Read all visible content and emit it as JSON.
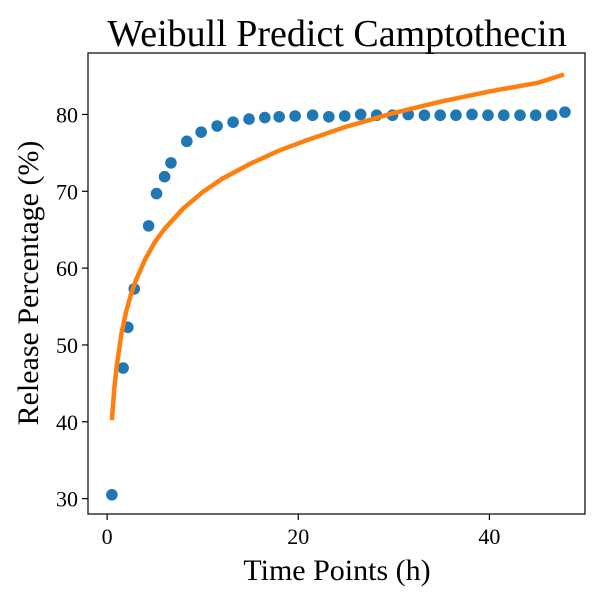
{
  "chart_data": {
    "type": "scatter",
    "title": "Weibull Predict Camptothecin",
    "xlabel": "Time Points (h)",
    "ylabel": "Release Percentage (%)",
    "xlim": [
      -2.0,
      50.0
    ],
    "ylim": [
      28.0,
      88.0
    ],
    "xticks": [
      0,
      20,
      40
    ],
    "yticks": [
      30,
      40,
      50,
      60,
      70,
      80
    ],
    "grid": false,
    "legend": "none",
    "colors": {
      "observed": "#1f77b4",
      "fit": "#ff7f0e"
    },
    "series": [
      {
        "kind": "scatter",
        "x": [
          0.5,
          1.67,
          2.17,
          2.84,
          4.34,
          5.17,
          6.01,
          6.68,
          8.34,
          9.84,
          11.51,
          13.18,
          14.85,
          16.5,
          18.0,
          19.67,
          21.5,
          23.2,
          24.86,
          26.53,
          28.2,
          29.86,
          31.5,
          33.2,
          34.85,
          36.5,
          38.18,
          39.85,
          41.5,
          43.2,
          44.84,
          46.5,
          47.9
        ],
        "y": [
          30.5,
          47.0,
          52.3,
          57.3,
          65.5,
          69.7,
          71.9,
          73.7,
          76.5,
          77.7,
          78.5,
          79.0,
          79.4,
          79.6,
          79.7,
          79.8,
          79.9,
          79.7,
          79.8,
          80.0,
          79.9,
          79.9,
          80.0,
          79.9,
          79.9,
          79.9,
          80.0,
          79.9,
          79.9,
          79.9,
          79.9,
          79.9,
          80.3
        ]
      },
      {
        "kind": "line",
        "x": [
          0.5,
          0.75,
          1.0,
          1.5,
          2.0,
          2.5,
          3.0,
          4.0,
          5.0,
          6.0,
          8.0,
          10.0,
          12.0,
          15.0,
          18.0,
          21.0,
          25.0,
          30.0,
          35.0,
          40.0,
          45.0,
          47.8
        ],
        "y": [
          40.2,
          44.3,
          47.2,
          51.5,
          54.4,
          56.6,
          58.4,
          61.2,
          63.4,
          65.1,
          67.8,
          69.9,
          71.6,
          73.6,
          75.3,
          76.7,
          78.4,
          80.2,
          81.7,
          83.0,
          84.1,
          85.2
        ]
      }
    ]
  }
}
